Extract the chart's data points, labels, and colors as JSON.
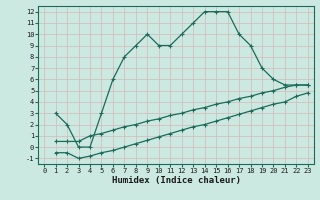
{
  "xlabel": "Humidex (Indice chaleur)",
  "ylabel": "",
  "xlim": [
    -0.5,
    23.5
  ],
  "ylim": [
    -1.5,
    12.5
  ],
  "bg_color": "#cce9e1",
  "grid_color": "#b0d4cc",
  "line_color": "#1a6b5a",
  "line1_x": [
    1,
    2,
    3,
    4,
    5,
    6,
    7,
    8,
    9,
    10,
    11,
    12,
    13,
    14,
    15,
    16,
    17,
    18,
    19,
    20,
    21,
    22,
    23
  ],
  "line1_y": [
    3,
    2,
    0,
    0,
    3,
    6,
    8,
    9,
    10,
    9,
    9,
    10,
    11,
    12,
    12,
    12,
    10,
    9,
    7,
    6,
    5.5,
    5.5,
    5.5
  ],
  "line2_x": [
    1,
    2,
    3,
    4,
    5,
    6,
    7,
    8,
    9,
    10,
    11,
    12,
    13,
    14,
    15,
    16,
    17,
    18,
    19,
    20,
    21,
    22,
    23
  ],
  "line2_y": [
    0.5,
    0.5,
    0.5,
    1.0,
    1.2,
    1.5,
    1.8,
    2.0,
    2.3,
    2.5,
    2.8,
    3.0,
    3.3,
    3.5,
    3.8,
    4.0,
    4.3,
    4.5,
    4.8,
    5.0,
    5.3,
    5.5,
    5.5
  ],
  "line3_x": [
    1,
    2,
    3,
    4,
    5,
    6,
    7,
    8,
    9,
    10,
    11,
    12,
    13,
    14,
    15,
    16,
    17,
    18,
    19,
    20,
    21,
    22,
    23
  ],
  "line3_y": [
    -0.5,
    -0.5,
    -1.0,
    -0.8,
    -0.5,
    -0.3,
    0.0,
    0.3,
    0.6,
    0.9,
    1.2,
    1.5,
    1.8,
    2.0,
    2.3,
    2.6,
    2.9,
    3.2,
    3.5,
    3.8,
    4.0,
    4.5,
    4.8
  ],
  "xticks": [
    0,
    1,
    2,
    3,
    4,
    5,
    6,
    7,
    8,
    9,
    10,
    11,
    12,
    13,
    14,
    15,
    16,
    17,
    18,
    19,
    20,
    21,
    22,
    23
  ],
  "yticks": [
    -1,
    0,
    1,
    2,
    3,
    4,
    5,
    6,
    7,
    8,
    9,
    10,
    11,
    12
  ],
  "tick_fontsize": 5.0,
  "xlabel_fontsize": 6.5
}
